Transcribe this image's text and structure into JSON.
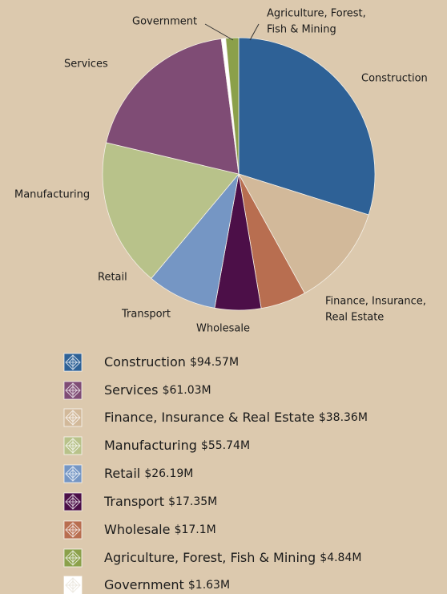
{
  "chart_data": {
    "type": "pie",
    "categories": [
      [
        "Construction"
      ],
      [
        "Finance, Insurance,",
        "Real Estate"
      ],
      [
        "Wholesale"
      ],
      [
        "Transport"
      ],
      [
        "Retail"
      ],
      [
        "Manufacturing"
      ],
      [
        "Services"
      ],
      [
        "Government"
      ],
      [
        "Agriculture, Forest,",
        "Fish & Mining"
      ]
    ],
    "legend_names": [
      "Construction",
      "Finance, Insurance & Real Estate",
      "Wholesale",
      "Transport",
      "Retail",
      "Manufacturing",
      "Services",
      "Government",
      "Agriculture, Forest, Fish & Mining"
    ],
    "values": [
      94.57,
      38.36,
      17.1,
      17.35,
      26.19,
      55.74,
      61.03,
      1.63,
      4.84
    ],
    "value_labels": [
      "$94.57M",
      "$38.36M",
      "$17.1M",
      "$17.35M",
      "$26.19M",
      "$55.74M",
      "$61.03M",
      "$1.63M",
      "$4.84M"
    ],
    "colors": [
      "#2e6196",
      "#d2b99a",
      "#b86e50",
      "#4c0f48",
      "#7596c4",
      "#b8c28a",
      "#7f4c75",
      "#ffffff",
      "#8ba04a"
    ]
  }
}
